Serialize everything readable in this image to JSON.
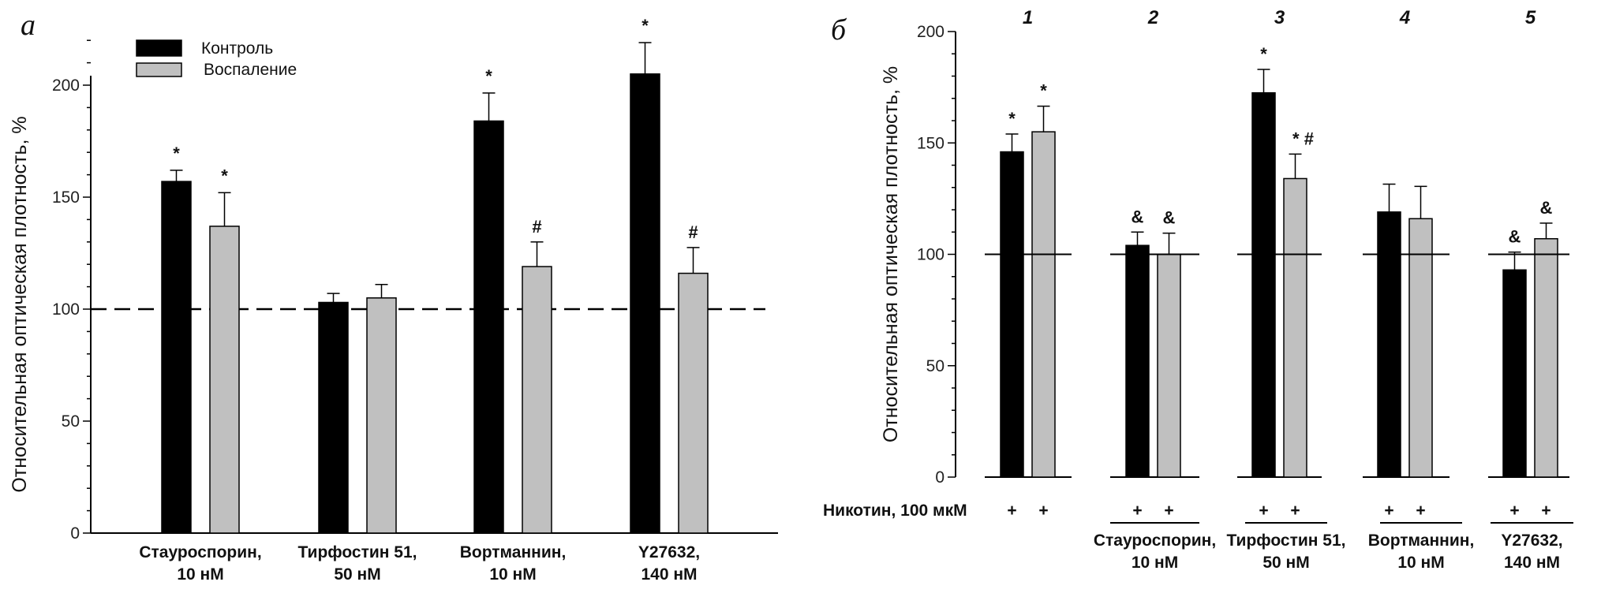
{
  "chart_data": [
    {
      "type": "bar",
      "panel_label": "а",
      "ylabel": "Относительная оптическая плотность, %",
      "ylim": [
        0,
        220
      ],
      "yticks": [
        0,
        50,
        100,
        150,
        200
      ],
      "reference_line": {
        "value": 100,
        "style": "dashed"
      },
      "legend": {
        "placement": "top-left",
        "entries": [
          "Контроль",
          "Воспаление"
        ]
      },
      "colors": {
        "Контроль": "#000000",
        "Воспаление": "#c0c0c0"
      },
      "categories": [
        [
          "Стауроспорин,",
          "10 нМ"
        ],
        [
          "Тирфостин 51,",
          "50 нМ"
        ],
        [
          "Вортманнин,",
          "10 нМ"
        ],
        [
          "Y27632,",
          "140 нМ"
        ]
      ],
      "series": [
        {
          "name": "Контроль",
          "values": [
            157,
            103,
            184,
            205
          ],
          "errors": [
            5,
            4,
            12.5,
            14
          ],
          "annotations": [
            "*",
            "",
            "*",
            "*"
          ]
        },
        {
          "name": "Воспаление",
          "values": [
            137,
            105,
            119,
            116
          ],
          "errors": [
            15,
            6,
            11,
            11.5
          ],
          "annotations": [
            "*",
            "",
            "#",
            "#"
          ]
        }
      ]
    },
    {
      "type": "bar",
      "panel_label": "б",
      "ylabel": "Относительная оптическая плотность, %",
      "ylim": [
        0,
        200
      ],
      "yticks": [
        0,
        50,
        100,
        150,
        200
      ],
      "reference_line": {
        "value": 100,
        "style": "solid"
      },
      "group_numbers": [
        "1",
        "2",
        "3",
        "4",
        "5"
      ],
      "row_label": "Никотин, 100 мкМ",
      "row_marks": [
        "+",
        "+",
        "+",
        "+",
        "+"
      ],
      "categories": [
        [
          "",
          ""
        ],
        [
          "Стауроспорин,",
          "10 нМ"
        ],
        [
          "Тирфостин 51,",
          "50 нМ"
        ],
        [
          "Вортманнин,",
          "10 нМ"
        ],
        [
          "Y27632,",
          "140 нМ"
        ]
      ],
      "colors": {
        "series1": "#000000",
        "series2": "#c0c0c0"
      },
      "series": [
        {
          "values": [
            146,
            104,
            172.5,
            119,
            93
          ],
          "errors": [
            8,
            6,
            10.5,
            12.5,
            8
          ],
          "annotations": [
            "*",
            "&",
            "*",
            "",
            "&"
          ]
        },
        {
          "values": [
            155,
            100,
            134,
            116,
            107
          ],
          "errors": [
            11.5,
            9.5,
            11,
            14.5,
            7
          ],
          "annotations": [
            "*",
            "&",
            "*  #",
            "",
            "&"
          ]
        }
      ]
    }
  ]
}
